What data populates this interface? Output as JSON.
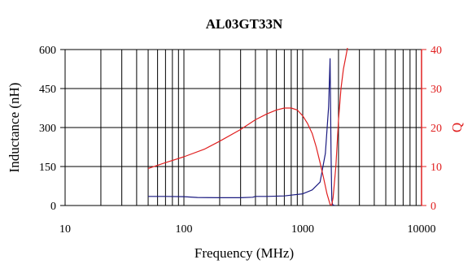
{
  "chart_data": {
    "type": "line",
    "title": "AL03GT33N",
    "xlabel": "Frequency (MHz)",
    "ylabel_left": "Inductance (nH)",
    "ylabel_right": "Q",
    "x_scale": "log",
    "xlim": [
      10,
      10000
    ],
    "ylim_left": [
      0,
      600
    ],
    "ylim_right": [
      0,
      40
    ],
    "x_ticks": [
      "10",
      "100",
      "1000",
      "10000"
    ],
    "y_ticks_left": [
      "0",
      "150",
      "300",
      "450",
      "600"
    ],
    "y_ticks_right": [
      "0",
      "10",
      "20",
      "30",
      "40"
    ],
    "grid": true,
    "colors": {
      "inductance": "#1a1a80",
      "q": "#e02020",
      "axis_right": "#e02020"
    },
    "series": [
      {
        "axis": "left",
        "color": "#1a1a80",
        "x": [
          50,
          70,
          100,
          130,
          200,
          300,
          380,
          400,
          500,
          700,
          800,
          1000,
          1200,
          1400,
          1550,
          1650,
          1700,
          1730,
          1750,
          1760,
          1780,
          1800,
          1850,
          1900
        ],
        "y": [
          35,
          35,
          34,
          31,
          30,
          30,
          32,
          35,
          35,
          37,
          40,
          45,
          60,
          90,
          200,
          380,
          565,
          200,
          60,
          20,
          5,
          2,
          0,
          0
        ]
      },
      {
        "axis": "right",
        "color": "#e02020",
        "x": [
          50,
          70,
          100,
          150,
          200,
          300,
          400,
          500,
          600,
          700,
          800,
          900,
          1000,
          1100,
          1200,
          1300,
          1400,
          1500,
          1600,
          1700,
          1750,
          1800,
          1900,
          2000,
          2100,
          2200,
          2300,
          2400
        ],
        "y": [
          9.5,
          11,
          12.5,
          14.5,
          16.5,
          19.5,
          22,
          23.5,
          24.5,
          25,
          25,
          24.5,
          23,
          21,
          18.5,
          15,
          11,
          7,
          3,
          0.3,
          0,
          2,
          10,
          22,
          30,
          35,
          38,
          41
        ]
      }
    ]
  }
}
